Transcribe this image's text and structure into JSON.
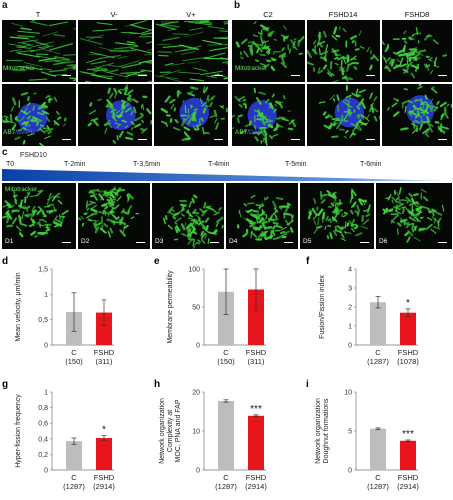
{
  "panels": {
    "a": {
      "letter": "a",
      "columns": [
        "T",
        "V-",
        "V+"
      ],
      "stain_top": "Mitotracker",
      "stain_bottom_green": "AB7",
      "stain_bottom_blue": "/DAPI"
    },
    "b": {
      "letter": "b",
      "columns": [
        "C2",
        "FSHD14",
        "FSHD8"
      ],
      "stain_top": "Mitotracker",
      "stain_bottom_green": "AB7",
      "stain_bottom_blue": "/DAPI"
    },
    "c": {
      "letter": "c",
      "t0": "T0",
      "cell_line": "FSHD10",
      "timepoints": [
        "T-2min",
        "T-3,5min",
        "T-4min",
        "T-5min",
        "T-6min"
      ],
      "stain": "Mitotracker",
      "frames": [
        "D1",
        "D2",
        "D3",
        "D4",
        "D5",
        "D6"
      ]
    }
  },
  "colors": {
    "control_bar": "#bdbdbd",
    "fshd_bar": "#e8141c",
    "mito_green": "#3fd23a",
    "nucleus_blue": "#2b3cd8",
    "timeline_blue": "#1f5fc4"
  },
  "chart_data": [
    {
      "panel": "d",
      "type": "bar",
      "categories": [
        "C",
        "FSHD"
      ],
      "counts": [
        "(150)",
        "(311)"
      ],
      "values": [
        0.65,
        0.64
      ],
      "errors": [
        0.38,
        0.25
      ],
      "ylabel": "Mean velocity, μm/min",
      "yticks": [
        "0",
        "0,5",
        "1",
        "1,5"
      ],
      "ytick_values": [
        0,
        0.5,
        1,
        1.5
      ],
      "ylim": [
        0,
        1.5
      ],
      "significance": ""
    },
    {
      "panel": "e",
      "type": "bar",
      "categories": [
        "C",
        "FSHD"
      ],
      "counts": [
        "(150)",
        "(311)"
      ],
      "values": [
        70,
        73
      ],
      "errors": [
        30,
        27
      ],
      "ylabel": "Membrane permeability",
      "yticks": [
        "0",
        "50",
        "100"
      ],
      "ytick_values": [
        0,
        50,
        100
      ],
      "ylim": [
        0,
        100
      ],
      "significance": ""
    },
    {
      "panel": "f",
      "type": "bar",
      "categories": [
        "C",
        "FSHD"
      ],
      "counts": [
        "(1287)",
        "(1078)"
      ],
      "values": [
        2.25,
        1.7
      ],
      "errors": [
        0.3,
        0.2
      ],
      "ylabel": "Fusion/Fission index",
      "yticks": [
        "0",
        "1",
        "2",
        "3",
        "4"
      ],
      "ytick_values": [
        0,
        1,
        2,
        3,
        4
      ],
      "ylim": [
        0,
        4
      ],
      "significance": "*"
    },
    {
      "panel": "g",
      "type": "bar",
      "categories": [
        "C",
        "FSHD"
      ],
      "counts": [
        "(1287)",
        "(2914)"
      ],
      "values": [
        0.37,
        0.41
      ],
      "errors": [
        0.04,
        0.03
      ],
      "ylabel": "Hyper-fission frequency",
      "yticks": [
        "0",
        "0,2",
        "0,4",
        "0,6",
        "0,8",
        "1"
      ],
      "ytick_values": [
        0,
        0.2,
        0.4,
        0.6,
        0.8,
        1
      ],
      "ylim": [
        0,
        1
      ],
      "significance": "*"
    },
    {
      "panel": "h",
      "type": "bar",
      "categories": [
        "C",
        "FSHD"
      ],
      "counts": [
        "(1287)",
        "(2914)"
      ],
      "values": [
        17.7,
        13.9
      ],
      "errors": [
        0.3,
        0.25
      ],
      "ylabel_lines": [
        "Network organization",
        "Complexity at",
        "MOC, PNA and FAP"
      ],
      "yticks": [
        "0",
        "10",
        "20"
      ],
      "ytick_values": [
        0,
        10,
        20
      ],
      "ylim": [
        0,
        20
      ],
      "significance": "***"
    },
    {
      "panel": "i",
      "type": "bar",
      "categories": [
        "C",
        "FSHD"
      ],
      "counts": [
        "(1287)",
        "(2914)"
      ],
      "values": [
        5.3,
        3.75
      ],
      "errors": [
        0.1,
        0.1
      ],
      "ylabel_lines": [
        "Network organization",
        "Doughnut formations"
      ],
      "yticks": [
        "0",
        "5",
        "10"
      ],
      "ytick_values": [
        0,
        5,
        10
      ],
      "ylim": [
        0,
        10
      ],
      "significance": "***"
    }
  ]
}
